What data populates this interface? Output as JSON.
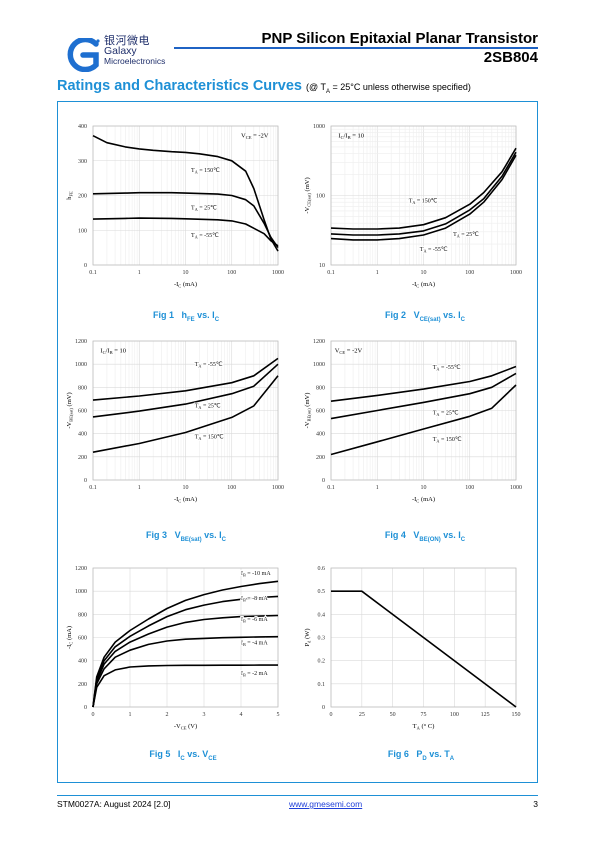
{
  "header": {
    "logo_cn": "银河微电",
    "logo_en": "Galaxy",
    "logo_sub": "Microelectronics",
    "title": "PNP Silicon Epitaxial Planar Transistor",
    "part_number": "2SB804",
    "accent_color": "#1e90d6",
    "brand_color": "#1f63c4"
  },
  "section": {
    "title": "Ratings and Characteristics Curves",
    "condition_prefix": "(@ T",
    "condition_sub": "A",
    "condition_suffix": " = 25°C unless otherwise specified)"
  },
  "chart_data": [
    {
      "id": "fig1",
      "type": "line",
      "caption": "Fig 1",
      "caption_qty": "h",
      "caption_qty_sub": "FE",
      "caption_rest": " vs. I",
      "caption_rest_sub": "C",
      "xscale": "log",
      "xlim": [
        0.1,
        1000
      ],
      "xticks": [
        "0.1",
        "1",
        "10",
        "100",
        "1000"
      ],
      "xlabel": "-I_C (mA)",
      "ylim": [
        0,
        400
      ],
      "yticks": [
        "0",
        "100",
        "200",
        "300",
        "400"
      ],
      "ylabel": "h_FE",
      "note": "V_CE = -2V",
      "series": [
        {
          "name": "T_A = 150℃",
          "x": [
            0.1,
            0.2,
            0.5,
            1,
            2,
            5,
            10,
            20,
            50,
            100,
            200,
            300,
            500,
            700,
            1000
          ],
          "y": [
            372,
            352,
            340,
            334,
            330,
            326,
            324,
            320,
            312,
            300,
            270,
            220,
            130,
            75,
            40
          ]
        },
        {
          "name": "T_A = 25℃",
          "x": [
            0.1,
            0.5,
            1,
            5,
            10,
            50,
            100,
            200,
            300,
            500,
            700,
            1000
          ],
          "y": [
            205,
            207,
            208,
            208,
            207,
            204,
            200,
            188,
            170,
            120,
            80,
            50
          ]
        },
        {
          "name": "T_A = -55℃",
          "x": [
            0.1,
            0.5,
            1,
            5,
            10,
            50,
            100,
            200,
            500,
            700,
            1000
          ],
          "y": [
            132,
            134,
            135,
            134,
            133,
            130,
            127,
            118,
            90,
            70,
            55
          ]
        }
      ]
    },
    {
      "id": "fig2",
      "type": "line",
      "caption": "Fig 2",
      "caption_qty": "V",
      "caption_qty_sub": "CE(sat)",
      "caption_rest": " vs. I",
      "caption_rest_sub": "C",
      "xscale": "log",
      "xlim": [
        0.1,
        1000
      ],
      "xticks": [
        "0.1",
        "1",
        "10",
        "100",
        "1000"
      ],
      "xlabel": "-I_C (mA)",
      "yscale": "log",
      "ylim": [
        10,
        1000
      ],
      "yticks": [
        "10",
        "100",
        "1000"
      ],
      "ylabel": "-V_CE(sat) (mV)",
      "note": "I_C/I_B = 10",
      "series": [
        {
          "name": "T_A = 150℃",
          "x": [
            0.1,
            0.3,
            1,
            3,
            10,
            30,
            100,
            200,
            500,
            1000
          ],
          "y": [
            34,
            33,
            33,
            34,
            38,
            48,
            75,
            110,
            220,
            480
          ]
        },
        {
          "name": "T_A = 25℃",
          "x": [
            0.1,
            0.3,
            1,
            3,
            10,
            30,
            100,
            200,
            500,
            1000
          ],
          "y": [
            28,
            27,
            27,
            28,
            31,
            39,
            62,
            90,
            190,
            420
          ]
        },
        {
          "name": "T_A = -55℃",
          "x": [
            0.1,
            0.3,
            1,
            3,
            10,
            30,
            100,
            200,
            500,
            1000
          ],
          "y": [
            24,
            23,
            23,
            24,
            27,
            34,
            54,
            80,
            170,
            380
          ]
        }
      ]
    },
    {
      "id": "fig3",
      "type": "line",
      "caption": "Fig 3",
      "caption_qty": "V",
      "caption_qty_sub": "BE(sat)",
      "caption_rest": " vs. I",
      "caption_rest_sub": "C",
      "xscale": "log",
      "xlim": [
        0.1,
        1000
      ],
      "xticks": [
        "0.1",
        "1",
        "10",
        "100",
        "1000"
      ],
      "xlabel": "-I_C (mA)",
      "ylim": [
        0,
        1200
      ],
      "yticks": [
        "0",
        "200",
        "400",
        "600",
        "800",
        "1000",
        "1200"
      ],
      "ylabel": "-V_BE(sat) (mV)",
      "note": "I_C/I_B = 10",
      "series": [
        {
          "name": "T_A = -55℃",
          "x": [
            0.1,
            1,
            10,
            100,
            300,
            1000
          ],
          "y": [
            690,
            725,
            770,
            840,
            900,
            1050
          ]
        },
        {
          "name": "T_A = 25℃",
          "x": [
            0.1,
            1,
            10,
            100,
            300,
            1000
          ],
          "y": [
            545,
            595,
            655,
            745,
            810,
            1000
          ]
        },
        {
          "name": "T_A = 150℃",
          "x": [
            0.1,
            1,
            10,
            100,
            300,
            1000
          ],
          "y": [
            240,
            315,
            410,
            540,
            640,
            900
          ]
        }
      ]
    },
    {
      "id": "fig4",
      "type": "line",
      "caption": "Fig 4",
      "caption_qty": "V",
      "caption_qty_sub": "BE(ON)",
      "caption_rest": " vs. I",
      "caption_rest_sub": "C",
      "xscale": "log",
      "xlim": [
        0.1,
        1000
      ],
      "xticks": [
        "0.1",
        "1",
        "10",
        "100",
        "1000"
      ],
      "xlabel": "-I_C (mA)",
      "ylim": [
        0,
        1200
      ],
      "yticks": [
        "0",
        "200",
        "400",
        "600",
        "800",
        "1000",
        "1200"
      ],
      "ylabel": "-V_BE(on) (mV)",
      "note": "V_CE = -2V",
      "series": [
        {
          "name": "T_A = -55℃",
          "x": [
            0.1,
            1,
            10,
            100,
            300,
            1000
          ],
          "y": [
            680,
            730,
            785,
            850,
            900,
            980
          ]
        },
        {
          "name": "T_A = 25℃",
          "x": [
            0.1,
            1,
            10,
            100,
            300,
            1000
          ],
          "y": [
            530,
            600,
            670,
            745,
            800,
            920
          ]
        },
        {
          "name": "T_A = 150℃",
          "x": [
            0.1,
            1,
            10,
            100,
            300,
            1000
          ],
          "y": [
            220,
            330,
            440,
            550,
            620,
            820
          ]
        }
      ]
    },
    {
      "id": "fig5",
      "type": "line",
      "caption": "Fig 5",
      "caption_qty": "I",
      "caption_qty_sub": "C",
      "caption_rest": " vs. V",
      "caption_rest_sub": "CE",
      "xlim": [
        0,
        5
      ],
      "xticks": [
        "0",
        "1",
        "2",
        "3",
        "4",
        "5"
      ],
      "xlabel": "-V_CE (V)",
      "ylim": [
        0,
        1200
      ],
      "yticks": [
        "0",
        "200",
        "400",
        "600",
        "800",
        "1000",
        "1200"
      ],
      "ylabel": "-I_C (mA)",
      "series": [
        {
          "name": "I_B = -10 mA",
          "x": [
            0,
            0.1,
            0.3,
            0.6,
            1,
            1.5,
            2,
            2.5,
            3,
            3.5,
            4,
            4.5,
            5
          ],
          "y": [
            0,
            260,
            430,
            560,
            660,
            760,
            850,
            920,
            970,
            1010,
            1040,
            1065,
            1085
          ]
        },
        {
          "name": "I_B = -8 mA",
          "x": [
            0,
            0.1,
            0.3,
            0.6,
            1,
            1.5,
            2,
            2.5,
            3,
            3.5,
            4,
            4.5,
            5
          ],
          "y": [
            0,
            240,
            400,
            520,
            610,
            700,
            780,
            840,
            880,
            910,
            930,
            945,
            955
          ]
        },
        {
          "name": "I_B = -6 mA",
          "x": [
            0,
            0.1,
            0.3,
            0.6,
            1,
            1.5,
            2,
            2.5,
            3,
            3.5,
            4,
            4.5,
            5
          ],
          "y": [
            0,
            220,
            370,
            480,
            560,
            630,
            690,
            730,
            755,
            770,
            780,
            785,
            790
          ]
        },
        {
          "name": "I_B = -4 mA",
          "x": [
            0,
            0.1,
            0.3,
            0.6,
            1,
            1.5,
            2,
            2.5,
            3,
            3.5,
            4,
            4.5,
            5
          ],
          "y": [
            0,
            200,
            330,
            430,
            490,
            540,
            570,
            585,
            592,
            598,
            602,
            605,
            607
          ]
        },
        {
          "name": "I_B = -2 mA",
          "x": [
            0,
            0.1,
            0.3,
            0.6,
            1,
            1.5,
            2,
            2.5,
            3,
            3.5,
            4,
            4.5,
            5
          ],
          "y": [
            0,
            170,
            270,
            320,
            345,
            355,
            358,
            360,
            360,
            361,
            361,
            362,
            362
          ]
        }
      ]
    },
    {
      "id": "fig6",
      "type": "line",
      "caption": "Fig 6",
      "caption_qty": "P",
      "caption_qty_sub": "D",
      "caption_rest": " vs. T",
      "caption_rest_sub": "A",
      "xlim": [
        0,
        150
      ],
      "xticks": [
        "0",
        "25",
        "50",
        "75",
        "100",
        "125",
        "150"
      ],
      "xlabel": "T_A (° C)",
      "ylim": [
        0,
        0.6
      ],
      "yticks": [
        "0",
        "0.1",
        "0.2",
        "0.3",
        "0.4",
        "0.5",
        "0.6"
      ],
      "ylabel": "P_d (W)",
      "series": [
        {
          "x": [
            0,
            25,
            150
          ],
          "y": [
            0.5,
            0.5,
            0
          ]
        }
      ]
    }
  ],
  "footer": {
    "doc_id": "STM0027A: August 2024 [2.0]",
    "website": "www.gmesemi.com",
    "page": "3"
  }
}
